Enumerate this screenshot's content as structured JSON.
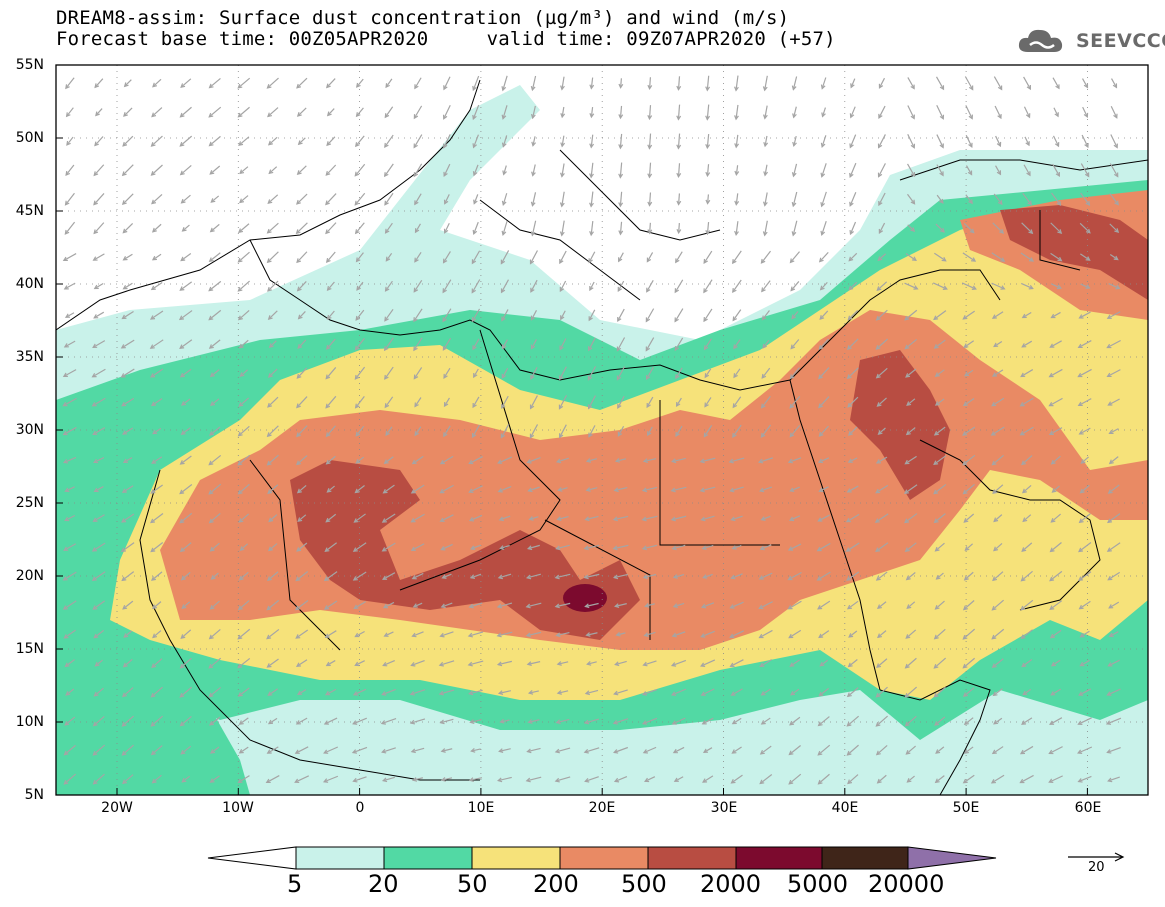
{
  "title_line1": "DREAM8-assim: Surface dust concentration (µg/m³) and wind (m/s)",
  "title_line2": "Forecast base time: 00Z05APR2020     valid time: 09Z07APR2020 (+57)",
  "logo": {
    "text": "SEEVCCC",
    "icon": "cloud-icon"
  },
  "lat_labels": [
    "55N",
    "50N",
    "45N",
    "40N",
    "35N",
    "30N",
    "25N",
    "20N",
    "15N",
    "10N",
    "5N"
  ],
  "lon_labels": [
    "20W",
    "10W",
    "0",
    "10E",
    "20E",
    "30E",
    "40E",
    "50E",
    "60E"
  ],
  "colorbar": {
    "colors": [
      "#c9f2ea",
      "#52d9a4",
      "#f6e27a",
      "#e98a64",
      "#b84d42",
      "#7c0a2e",
      "#3f2519",
      "#8f70a9"
    ],
    "labels": [
      "5",
      "20",
      "50",
      "200",
      "500",
      "2000",
      "5000",
      "20000"
    ]
  },
  "vector_key": "20",
  "colors": {
    "wind_arrow": "#a5a5a5",
    "border": "#000000",
    "grid": "#8a8a8a"
  }
}
